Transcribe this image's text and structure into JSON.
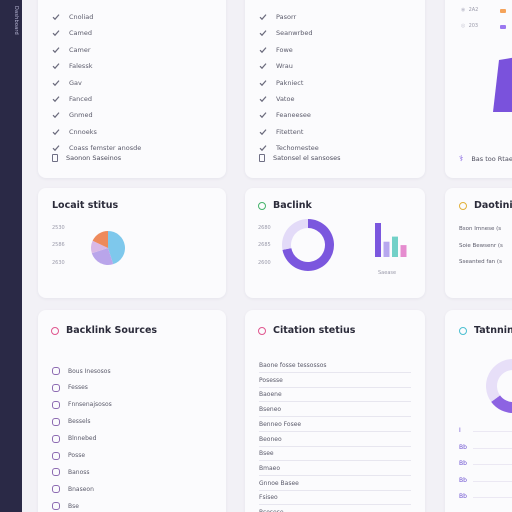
{
  "sidebar": {
    "label": "Dashboard"
  },
  "card1": {
    "items": [
      "Cnoliad",
      "Camed",
      "Camer",
      "Falessk",
      "Gav",
      "Fanced",
      "Gnmed",
      "Cnnoeks",
      "Coass femster anosde"
    ],
    "footer": "Saonon Saseinos"
  },
  "card2": {
    "items": [
      "Pasorr",
      "Seanwrbed",
      "Fowe",
      "Wrau",
      "Pakniect",
      "Vatoe",
      "Feaneesee",
      "Fitettent",
      "Techomestee"
    ],
    "footer": "Satonsel el sansoses"
  },
  "card3": {
    "top_items": [
      "2A2",
      "203"
    ],
    "footer": "Bas too Rtae"
  },
  "locale_status": {
    "title": "Locait stitus",
    "labels": [
      "2530",
      "2586",
      "2630"
    ],
    "chart_data": {
      "type": "pie",
      "slices": [
        {
          "value": 45,
          "color": "#7ec8ec"
        },
        {
          "value": 25,
          "color": "#b9a5ea"
        },
        {
          "value": 12,
          "color": "#d9b8e6"
        },
        {
          "value": 18,
          "color": "#ee8a5c"
        }
      ]
    }
  },
  "backlink": {
    "title": "Baclink",
    "labels": [
      "2680",
      "2685",
      "2600"
    ],
    "donut_chart_data": {
      "type": "pie",
      "slices": [
        {
          "value": 72,
          "color": "#7b57de"
        },
        {
          "value": 28,
          "color": "#e3dbf8"
        }
      ]
    },
    "bar_chart_data": {
      "type": "bar",
      "values": [
        100,
        45,
        60,
        35
      ],
      "colors": [
        "#7b57de",
        "#b7a8ef",
        "#72d1c8",
        "#e58ccf"
      ]
    },
    "bar_caption": "Saease"
  },
  "card6": {
    "title": "Daotini",
    "rows": [
      "Bson Imnese (s",
      "Soie Bewsenr (s",
      "Sseanted fan (s"
    ]
  },
  "backlink_sources": {
    "title": "Backlink Sources",
    "items": [
      "Bous Inesosos",
      "Fesses",
      "Fnnsenajsosos",
      "Bessels",
      "Blnnebed",
      "Posse",
      "Banoss",
      "Bnaseon",
      "Bse"
    ]
  },
  "citation_status": {
    "title": "Citation stetius",
    "rows": [
      "Baone fosse tessossos",
      "Posesse",
      "Baoene",
      "Bseneo",
      "Benneo Fosee",
      "Beoneo",
      "Bsee",
      "Bmaeo",
      "Gnnoe Basee",
      "Fsiseo",
      "Bsosese"
    ]
  },
  "trend": {
    "title": "Tatnniny",
    "chart_data": {
      "type": "pie",
      "slices": [
        {
          "value": 65,
          "color": "#8d63e2"
        },
        {
          "value": 35,
          "color": "#e7dff8"
        }
      ]
    },
    "rows": [
      "I",
      "Bb",
      "Bb",
      "Bb",
      "Bb"
    ]
  }
}
